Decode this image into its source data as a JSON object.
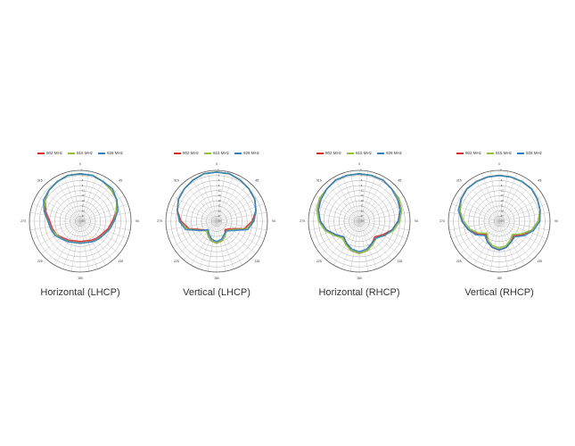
{
  "chart_data": [
    {
      "type": "polar",
      "title": "Horizontal (LHCP)",
      "theta": [
        0,
        15,
        30,
        45,
        60,
        75,
        90,
        105,
        120,
        135,
        150,
        165,
        180,
        195,
        210,
        225,
        240,
        255,
        270,
        285,
        300,
        315,
        330,
        345
      ],
      "thetaticks": [
        0,
        45,
        90,
        135,
        180,
        225,
        270,
        315
      ],
      "rlim": [
        -30,
        0
      ],
      "rticks": [
        -30,
        -27,
        -24,
        -21,
        -18,
        -15,
        -12,
        -9,
        -6,
        -3,
        0
      ],
      "series": [
        {
          "name": "902 MHz",
          "color": "#d62b2b",
          "values": [
            -2,
            -2,
            -3,
            -4,
            -5,
            -8,
            -11,
            -13,
            -15,
            -16,
            -17,
            -18,
            -18,
            -18,
            -17,
            -16,
            -14,
            -13,
            -12,
            -9,
            -6,
            -4,
            -3,
            -2
          ]
        },
        {
          "name": "915 MHz",
          "color": "#8cc43c",
          "values": [
            -2,
            -2,
            -3,
            -4,
            -5,
            -8,
            -10,
            -12,
            -14,
            -15,
            -16,
            -17,
            -17,
            -17,
            -16,
            -15,
            -14,
            -12,
            -11,
            -8,
            -6,
            -4,
            -3,
            -2
          ]
        },
        {
          "name": "928 MHz",
          "color": "#2f7fc1",
          "values": [
            -2,
            -2,
            -3,
            -3,
            -5,
            -7,
            -10,
            -12,
            -14,
            -15,
            -16,
            -17,
            -17,
            -17,
            -16,
            -15,
            -13,
            -12,
            -11,
            -8,
            -5,
            -4,
            -3,
            -2
          ]
        }
      ]
    },
    {
      "type": "polar",
      "title": "Vertical (LHCP)",
      "theta": [
        0,
        15,
        30,
        45,
        60,
        75,
        90,
        105,
        120,
        135,
        150,
        165,
        180,
        195,
        210,
        225,
        240,
        255,
        270,
        285,
        300,
        315,
        330,
        345
      ],
      "thetaticks": [
        0,
        45,
        90,
        135,
        180,
        225,
        270,
        315
      ],
      "rlim": [
        -30,
        0
      ],
      "rticks": [
        -30,
        -27,
        -24,
        -21,
        -18,
        -15,
        -12,
        -9,
        -6,
        -3,
        0
      ],
      "series": [
        {
          "name": "902 MHz",
          "color": "#d62b2b",
          "values": [
            -1,
            -1,
            -2,
            -3,
            -4,
            -6,
            -9,
            -13,
            -21,
            -23,
            -20,
            -18,
            -17,
            -18,
            -20,
            -22,
            -20,
            -13,
            -9,
            -6,
            -4,
            -3,
            -2,
            -1
          ]
        },
        {
          "name": "915 MHz",
          "color": "#8cc43c",
          "values": [
            -1,
            -1,
            -2,
            -3,
            -4,
            -6,
            -8,
            -12,
            -20,
            -22,
            -20,
            -18,
            -17,
            -18,
            -20,
            -22,
            -19,
            -12,
            -8,
            -6,
            -4,
            -3,
            -2,
            -1
          ]
        },
        {
          "name": "928 MHz",
          "color": "#2f7fc1",
          "values": [
            -1,
            -1,
            -2,
            -3,
            -4,
            -6,
            -8,
            -11,
            -19,
            -22,
            -21,
            -19,
            -18,
            -19,
            -21,
            -23,
            -19,
            -11,
            -8,
            -6,
            -4,
            -3,
            -2,
            -1
          ]
        }
      ]
    },
    {
      "type": "polar",
      "title": "Horizontal (RHCP)",
      "theta": [
        0,
        15,
        30,
        45,
        60,
        75,
        90,
        105,
        120,
        135,
        150,
        165,
        180,
        195,
        210,
        225,
        240,
        255,
        270,
        285,
        300,
        315,
        330,
        345
      ],
      "thetaticks": [
        0,
        45,
        90,
        135,
        180,
        225,
        270,
        315
      ],
      "rlim": [
        -30,
        0
      ],
      "rticks": [
        -30,
        -27,
        -24,
        -21,
        -18,
        -15,
        -12,
        -9,
        -6,
        -3,
        0
      ],
      "series": [
        {
          "name": "902 MHz",
          "color": "#d62b2b",
          "values": [
            -2,
            -2,
            -2,
            -3,
            -3,
            -5,
            -7,
            -10,
            -14,
            -17,
            -15,
            -12,
            -11,
            -12,
            -15,
            -17,
            -14,
            -10,
            -7,
            -5,
            -3,
            -3,
            -2,
            -2
          ]
        },
        {
          "name": "915 MHz",
          "color": "#8cc43c",
          "values": [
            -2,
            -2,
            -2,
            -3,
            -3,
            -4,
            -6,
            -9,
            -13,
            -16,
            -14,
            -12,
            -11,
            -12,
            -14,
            -16,
            -13,
            -9,
            -6,
            -4,
            -3,
            -3,
            -2,
            -2
          ]
        },
        {
          "name": "928 MHz",
          "color": "#2f7fc1",
          "values": [
            -2,
            -2,
            -2,
            -3,
            -4,
            -5,
            -7,
            -10,
            -13,
            -16,
            -15,
            -13,
            -12,
            -13,
            -15,
            -17,
            -14,
            -10,
            -7,
            -5,
            -4,
            -3,
            -2,
            -2
          ]
        }
      ]
    },
    {
      "type": "polar",
      "title": "Vertical (RHCP)",
      "theta": [
        0,
        15,
        30,
        45,
        60,
        75,
        90,
        105,
        120,
        135,
        150,
        165,
        180,
        195,
        210,
        225,
        240,
        255,
        270,
        285,
        300,
        315,
        330,
        345
      ],
      "thetaticks": [
        0,
        45,
        90,
        135,
        180,
        225,
        270,
        315
      ],
      "rlim": [
        -30,
        0
      ],
      "rticks": [
        -30,
        -27,
        -24,
        -21,
        -18,
        -15,
        -12,
        -9,
        -6,
        -3,
        0
      ],
      "series": [
        {
          "name": "902 MHz",
          "color": "#d62b2b",
          "values": [
            -3,
            -3,
            -3,
            -3,
            -4,
            -5,
            -7,
            -10,
            -14,
            -18,
            -16,
            -14,
            -13,
            -14,
            -16,
            -19,
            -15,
            -11,
            -8,
            -6,
            -4,
            -3,
            -3,
            -3
          ]
        },
        {
          "name": "915 MHz",
          "color": "#8cc43c",
          "values": [
            -3,
            -3,
            -3,
            -3,
            -4,
            -5,
            -7,
            -10,
            -15,
            -19,
            -17,
            -15,
            -14,
            -15,
            -17,
            -20,
            -16,
            -12,
            -9,
            -6,
            -4,
            -3,
            -3,
            -3
          ]
        },
        {
          "name": "928 MHz",
          "color": "#2f7fc1",
          "values": [
            -3,
            -3,
            -3,
            -3,
            -4,
            -5,
            -6,
            -9,
            -13,
            -17,
            -16,
            -14,
            -13,
            -14,
            -16,
            -18,
            -14,
            -11,
            -8,
            -5,
            -4,
            -3,
            -3,
            -3
          ]
        }
      ]
    }
  ]
}
